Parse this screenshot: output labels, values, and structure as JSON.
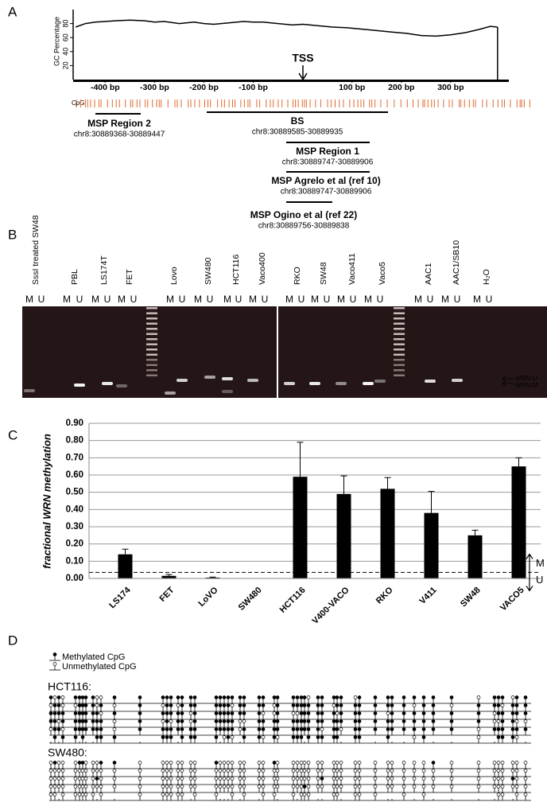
{
  "panel_labels": [
    "A",
    "B",
    "C",
    "D"
  ],
  "chart_data": [
    {
      "type": "line",
      "y_label": "GC Percentage",
      "color": "#000000",
      "xlim": [
        -465,
        413
      ],
      "ylim": [
        0,
        100
      ],
      "yticks": [
        20,
        40,
        60,
        80
      ],
      "xticks": [
        {
          "value": -400,
          "label": "-400 bp"
        },
        {
          "value": -300,
          "label": "-300 bp"
        },
        {
          "value": -200,
          "label": "-200 bp"
        },
        {
          "value": -100,
          "label": "-100 bp"
        },
        {
          "value": 100,
          "label": "100 bp"
        },
        {
          "value": 200,
          "label": "200 bp"
        },
        {
          "value": 300,
          "label": "300 bp"
        }
      ],
      "x": [
        -460,
        -440,
        -420,
        -400,
        -380,
        -350,
        -320,
        -300,
        -280,
        -250,
        -220,
        -200,
        -180,
        -150,
        -120,
        -100,
        -80,
        -50,
        -20,
        0,
        30,
        60,
        90,
        120,
        150,
        180,
        210,
        240,
        270,
        300,
        330,
        360,
        380,
        395
      ],
      "values": [
        75,
        80,
        82,
        83,
        84,
        85,
        84,
        82,
        83,
        80,
        82,
        80,
        79,
        81,
        83,
        82,
        82,
        80,
        78,
        79,
        77,
        75,
        74,
        72,
        70,
        68,
        66,
        63,
        62,
        64,
        67,
        72,
        76,
        75
      ]
    },
    {
      "type": "bar",
      "y_label": "fractional WRN methylation",
      "categories": [
        "LS174",
        "FET",
        "LoVO",
        "SW480",
        "HCT116",
        "V400-VACO",
        "RKO",
        "V411",
        "SW48",
        "VACO5"
      ],
      "values": [
        0.14,
        0.015,
        0.005,
        0,
        0.59,
        0.49,
        0.52,
        0.38,
        0.25,
        0.65
      ],
      "errors": [
        0.03,
        0.008,
        0.003,
        0,
        0.2,
        0.105,
        0.065,
        0.125,
        0.03,
        0.05
      ],
      "color": "#000000",
      "ylim": [
        0,
        0.9
      ],
      "yticks": [
        {
          "value": 0,
          "label": "0.00"
        },
        {
          "value": 0.1,
          "label": "0.10"
        },
        {
          "value": 0.2,
          "label": "0.20"
        },
        {
          "value": 0.3,
          "label": "0.30"
        },
        {
          "value": 0.4,
          "label": "0.40"
        },
        {
          "value": 0.5,
          "label": "0.50"
        },
        {
          "value": 0.6,
          "label": "0.60"
        },
        {
          "value": 0.7,
          "label": "0.70"
        },
        {
          "value": 0.8,
          "label": "0.80"
        },
        {
          "value": 0.9,
          "label": "0.90"
        }
      ],
      "grid": true,
      "threshold": 0.035,
      "threshold_labels": [
        "M",
        "U"
      ]
    }
  ],
  "panel_a": {
    "tss": "TSS",
    "cpg_label": "CpG",
    "regions": [
      {
        "name": "MSP Region 2",
        "coords": "chr8:30889368-30889447"
      },
      {
        "name": "BS",
        "coords": "chr8:30889585-30889935"
      },
      {
        "name": "MSP Region 1",
        "coords": "chr8:30889747-30889906"
      },
      {
        "name": "MSP Agrelo et al (ref 10)",
        "coords": "chr8:30889747-30889906"
      },
      {
        "name": "MSP Ogino et al (ref 22)",
        "coords": "chr8:30889756-30889838"
      }
    ]
  },
  "panel_b": {
    "lanes": [
      "SssI treated SW48",
      "PBL",
      "LS174T",
      "FET",
      "Lovo",
      "SW480",
      "HCT116",
      "Vaco400",
      "RKO",
      "SW48",
      "Vaco411",
      "Vaco5",
      "AAC1",
      "AAC1/SB10",
      "H₂O"
    ],
    "m": "M",
    "u": "U",
    "band_labels": [
      "WRN-U",
      "WRN-M"
    ]
  },
  "panel_d": {
    "legend": [
      "Methylated CpG",
      "Unmethylated CpG"
    ],
    "samples": [
      "HCT116:",
      "SW480:"
    ]
  }
}
